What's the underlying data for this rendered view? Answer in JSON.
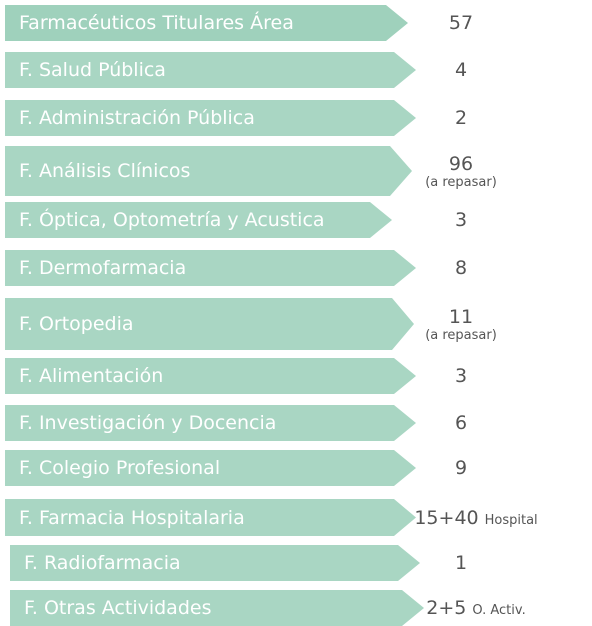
{
  "items": [
    {
      "label": "Farmacéuticos Titulares Área",
      "value": "57"
    },
    {
      "label": "F. Salud Pública",
      "value": "4"
    },
    {
      "label": "F. Administración Pública",
      "value": "2"
    },
    {
      "label": "F. Análisis Clínicos",
      "value": "96",
      "note": "(a repasar)"
    },
    {
      "label": "F. Óptica, Optometría y Acustica",
      "value": "3"
    },
    {
      "label": "F. Dermofarmacia",
      "value": "8"
    },
    {
      "label": "F. Ortopedia",
      "value": "11",
      "note": "(a repasar)"
    },
    {
      "label": "F. Alimentación",
      "value": "3"
    },
    {
      "label": "F. Investigación y Docencia",
      "value": "6"
    },
    {
      "label": "F. Colegio Profesional",
      "value": "9"
    },
    {
      "label": "F. Farmacia Hospitalaria",
      "value": "15+40",
      "note": "Hospital"
    },
    {
      "label": "F. Radiofarmacia",
      "value": "1"
    },
    {
      "label": "F. Otras Actividades",
      "value": "2+5",
      "note": "O. Activ."
    }
  ]
}
